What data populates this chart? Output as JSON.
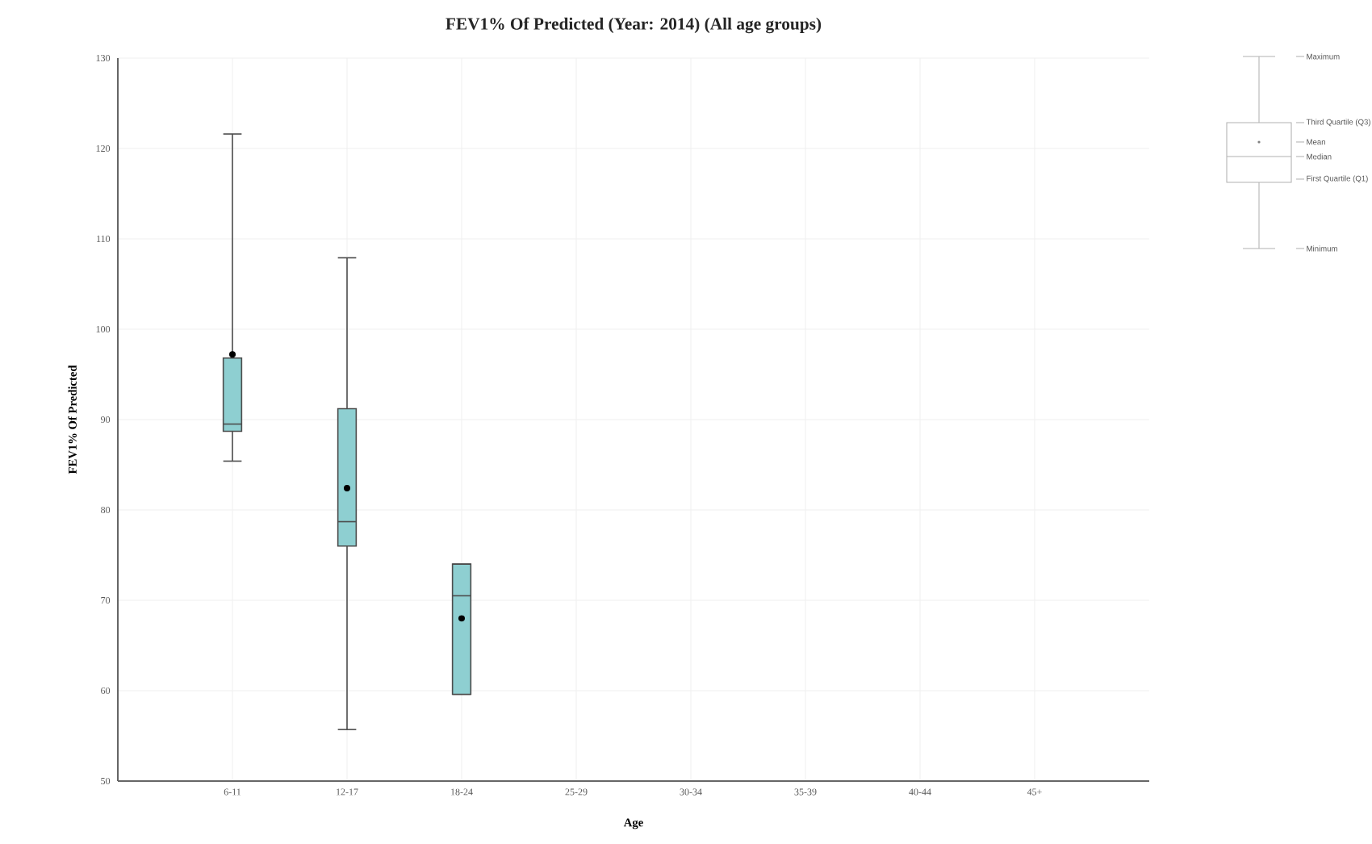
{
  "chart_data": {
    "type": "box",
    "title": "FEV1% Of Predicted (Year: 2014) (All age groups)",
    "xlabel": "Age",
    "ylabel": "FEV1% Of Predicted",
    "categories": [
      "6-11",
      "12-17",
      "18-24",
      "25-29",
      "30-34",
      "35-39",
      "40-44",
      "45+"
    ],
    "boxes": [
      {
        "low": 85.4,
        "q1": 88.7,
        "median": 89.5,
        "q3": 96.8,
        "high": 121.6,
        "mean": 97.2
      },
      {
        "low": 55.7,
        "q1": 76.0,
        "median": 78.7,
        "q3": 91.2,
        "high": 107.9,
        "mean": 82.4
      },
      {
        "low": 59.6,
        "q1": 59.6,
        "median": 70.5,
        "q3": 74.0,
        "high": 74.0,
        "mean": 68.0
      },
      null,
      null,
      null,
      null,
      null
    ],
    "color": "#8ecfd1",
    "marker": "circle",
    "grid": true,
    "ylim": [
      50,
      130
    ],
    "yticks": [
      50,
      60,
      70,
      80,
      90,
      100,
      110,
      120,
      130
    ],
    "annotations": [
      "Maximum",
      "Third Quartile (Q3)",
      "Mean",
      "Median",
      "First Quartile (Q1)",
      "Minimum"
    ]
  }
}
